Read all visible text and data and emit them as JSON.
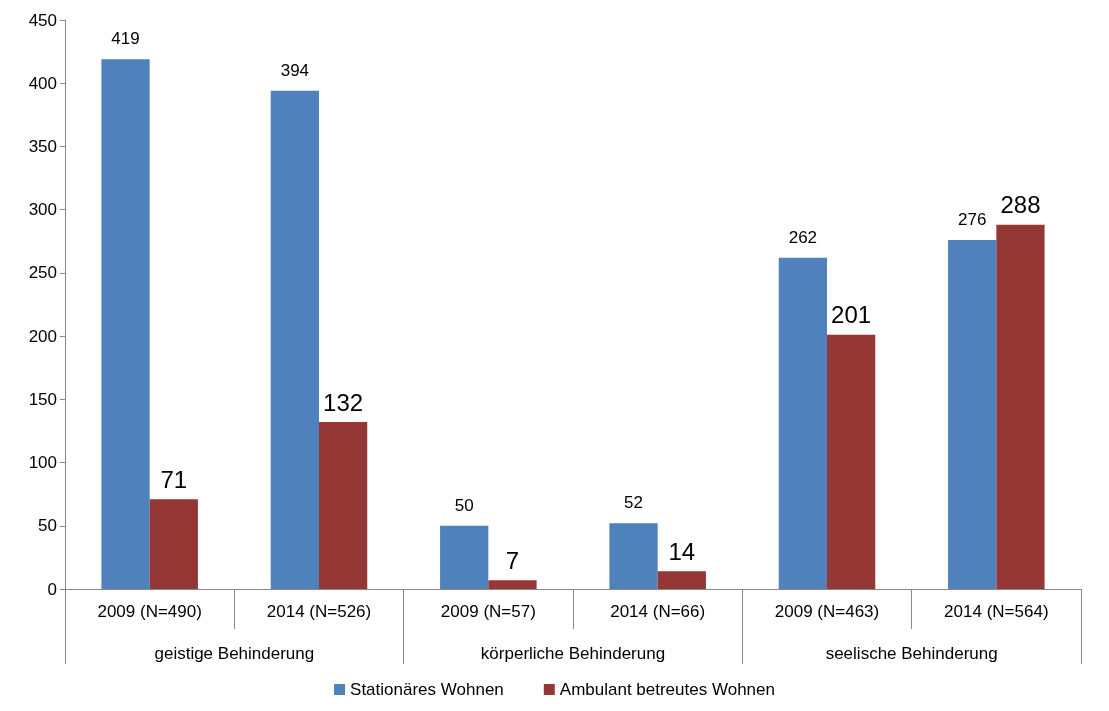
{
  "chart_data": {
    "type": "bar",
    "categories": [
      "2009 (N=490)",
      "2014 (N=526)",
      "2009 (N=57)",
      "2014 (N=66)",
      "2009 (N=463)",
      "2014 (N=564)"
    ],
    "series": [
      {
        "name": "Stationäres Wohnen",
        "color": "#4f81bd",
        "values": [
          419,
          394,
          50,
          52,
          262,
          276
        ]
      },
      {
        "name": "Ambulant betreutes Wohnen",
        "color": "#953735",
        "values": [
          71,
          132,
          7,
          14,
          201,
          288
        ]
      }
    ],
    "annotations": [
      "geistige Behinderung",
      "körperliche Behinderung",
      "seelische Behinderung"
    ],
    "ylim": [
      0,
      450
    ],
    "yticks": [
      0,
      50,
      100,
      150,
      200,
      250,
      300,
      350,
      400,
      450
    ],
    "data_labels": true,
    "grid": false,
    "legend": "bottom"
  }
}
